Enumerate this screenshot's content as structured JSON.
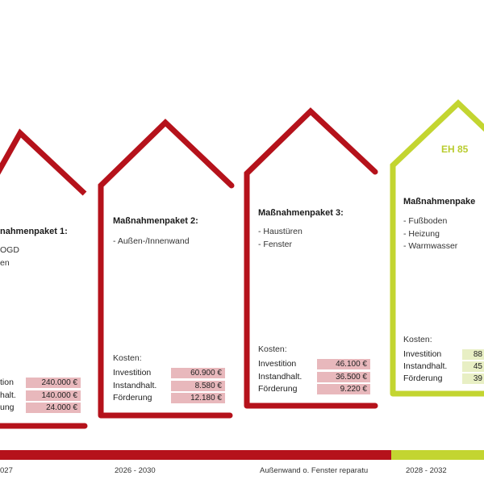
{
  "colors": {
    "red": "#b5121b",
    "green": "#c3d531",
    "pink": "#e8b8bc",
    "lightgreen": "#e8efc4"
  },
  "packages": [
    {
      "title": "nahmenpaket 1:",
      "items": [
        "OGD",
        "en"
      ],
      "kosten_label": "",
      "costs": [
        {
          "label": "tion",
          "value": "240.000 €"
        },
        {
          "label": "halt.",
          "value": "140.000 €"
        },
        {
          "label": "ung",
          "value": "24.000 €"
        }
      ]
    },
    {
      "title": "Maßnahmenpaket 2:",
      "items": [
        "- Außen-/Innenwand"
      ],
      "kosten_label": "Kosten:",
      "costs": [
        {
          "label": "Investition",
          "value": "60.900 €"
        },
        {
          "label": "Instandhalt.",
          "value": "8.580 €"
        },
        {
          "label": "Förderung",
          "value": "12.180 €"
        }
      ]
    },
    {
      "title": "Maßnahmenpaket 3:",
      "items": [
        "- Haustüren",
        "- Fenster"
      ],
      "kosten_label": "Kosten:",
      "costs": [
        {
          "label": "Investition",
          "value": "46.100 €"
        },
        {
          "label": "Instandhalt.",
          "value": "36.500 €"
        },
        {
          "label": "Förderung",
          "value": "9.220 €"
        }
      ]
    },
    {
      "title": "Maßnahmenpake",
      "badge": "EH 85",
      "items": [
        "- Fußboden",
        "- Heizung",
        "- Warmwasser"
      ],
      "kosten_label": "Kosten:",
      "costs": [
        {
          "label": "Investition",
          "value": "88"
        },
        {
          "label": "Instandhalt.",
          "value": "45"
        },
        {
          "label": "Förderung",
          "value": "39"
        }
      ]
    }
  ],
  "timeline": {
    "labels": [
      "027",
      "2026 - 2030",
      "Außenwand o. Fenster reparatu",
      "2028 - 2032"
    ]
  }
}
